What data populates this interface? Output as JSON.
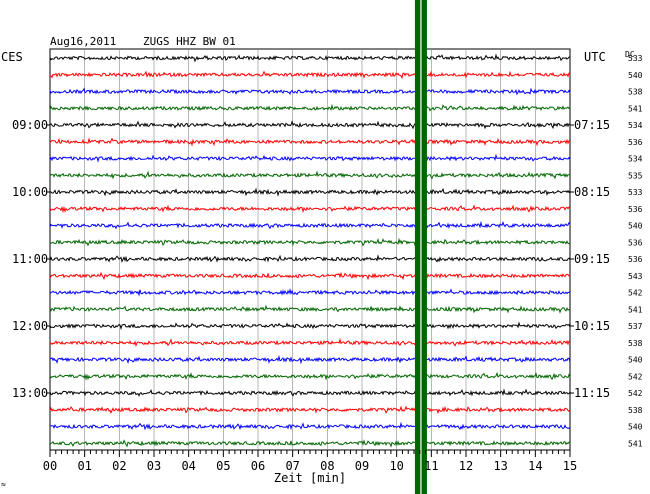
{
  "header": {
    "date": "Aug16,2011",
    "station": "ZUGS HHZ BW 01",
    "left_zone": "CES",
    "right_zone": "UTC",
    "dc_label": "DC"
  },
  "x_axis": {
    "label": "Zeit [min]",
    "ticks": [
      "00",
      "01",
      "02",
      "03",
      "04",
      "05",
      "06",
      "07",
      "08",
      "09",
      "10",
      "11",
      "12",
      "13",
      "14",
      "15"
    ],
    "range": [
      0,
      15
    ]
  },
  "left_hours": [
    "09:00",
    "10:00",
    "11:00",
    "12:00",
    "13:00"
  ],
  "right_times": [
    "07:15",
    "08:15",
    "09:15",
    "10:15",
    "11:15"
  ],
  "dc_values": [
    "533",
    "540",
    "538",
    "541",
    "534",
    "536",
    "534",
    "535",
    "533",
    "536",
    "540",
    "536",
    "536",
    "543",
    "542",
    "541",
    "537",
    "538",
    "540",
    "542",
    "542",
    "538",
    "540",
    "541"
  ],
  "trace_colors": [
    "#000000",
    "#ff0000",
    "#0000ff",
    "#006600"
  ],
  "event_band_color": "#006600",
  "event_minute": 10.7,
  "footnote": "≈"
}
